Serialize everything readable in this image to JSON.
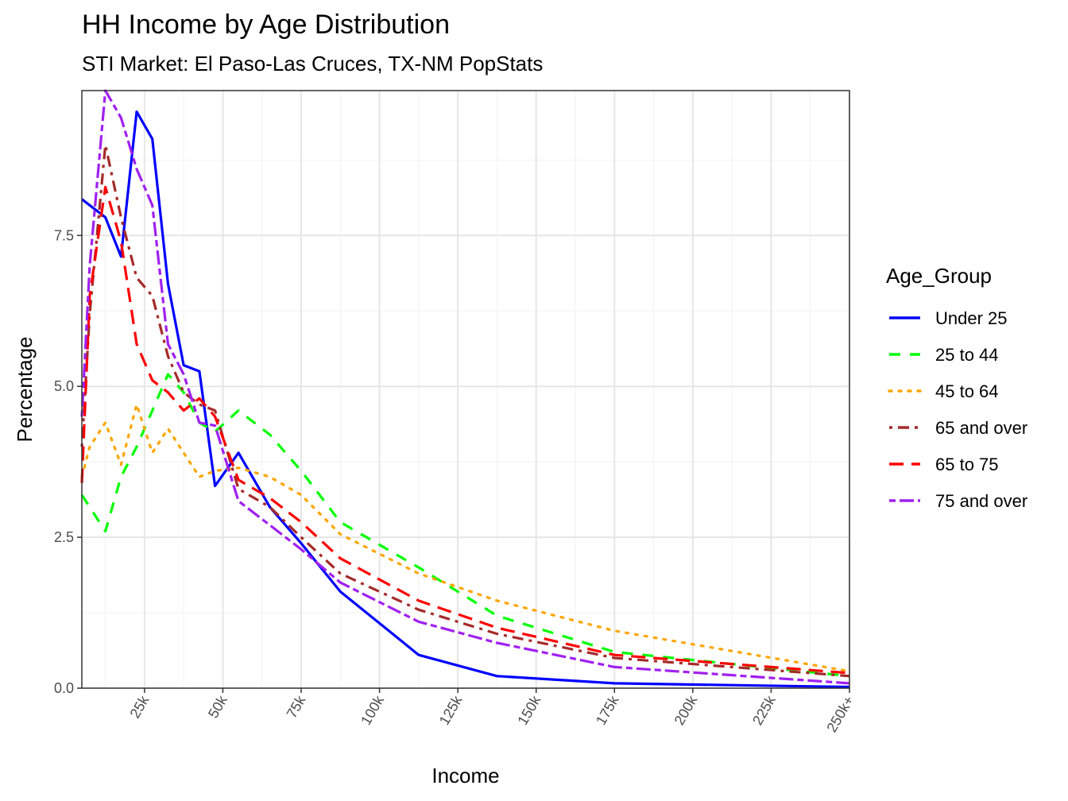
{
  "chart_data": {
    "type": "line",
    "title": "HH Income by Age Distribution",
    "subtitle": "STI Market: El Paso-Las Cruces, TX-NM PopStats",
    "xlabel": "Income",
    "ylabel": "Percentage",
    "x": [
      5,
      7.5,
      12.5,
      17.5,
      22.5,
      27.5,
      32.5,
      37.5,
      42.5,
      47.5,
      55,
      65,
      75,
      87.5,
      112.5,
      137.5,
      175,
      250
    ],
    "xlim": [
      5,
      250
    ],
    "ylim": [
      0,
      9.9
    ],
    "x_ticks": [
      25,
      50,
      75,
      100,
      125,
      150,
      175,
      200,
      225,
      250
    ],
    "x_tick_labels": [
      "25k",
      "50k",
      "75k",
      "100k",
      "125k",
      "150k",
      "175k",
      "200k",
      "225k",
      "250k+"
    ],
    "y_ticks": [
      0,
      2.5,
      5,
      7.5
    ],
    "y_tick_labels": [
      "0.0",
      "2.5",
      "5.0",
      "7.5"
    ],
    "grid": true,
    "legend_title": "Age_Group",
    "legend_position": "right",
    "series": [
      {
        "name": "Under 25",
        "color": "#0000ff",
        "dash": "solid",
        "values": [
          8.1,
          8.0,
          7.8,
          7.15,
          9.55,
          9.1,
          6.7,
          5.35,
          5.25,
          3.35,
          3.9,
          3.0,
          2.4,
          1.6,
          0.55,
          0.2,
          0.08,
          0.02
        ]
      },
      {
        "name": "25 to 44",
        "color": "#00ff00",
        "dash": "dash",
        "values": [
          3.2,
          3.0,
          2.6,
          3.5,
          4.0,
          4.6,
          5.2,
          4.9,
          4.4,
          4.25,
          4.6,
          4.2,
          3.6,
          2.75,
          2.0,
          1.2,
          0.6,
          0.2
        ]
      },
      {
        "name": "45 to 64",
        "color": "#ffa500",
        "dash": "dot",
        "values": [
          3.5,
          4.0,
          4.4,
          3.7,
          4.7,
          3.9,
          4.3,
          3.9,
          3.5,
          3.6,
          3.65,
          3.5,
          3.2,
          2.55,
          1.9,
          1.45,
          0.95,
          0.28
        ]
      },
      {
        "name": "65 and over",
        "color": "#a52a2a",
        "dash": "dashdot",
        "values": [
          4.0,
          6.2,
          9.0,
          7.8,
          6.8,
          6.5,
          5.5,
          4.9,
          4.7,
          4.6,
          3.3,
          3.0,
          2.5,
          1.9,
          1.3,
          0.9,
          0.5,
          0.2
        ]
      },
      {
        "name": "65 to 75",
        "color": "#ff0000",
        "dash": "longdash",
        "values": [
          3.4,
          6.5,
          8.3,
          7.4,
          5.7,
          5.1,
          4.9,
          4.6,
          4.8,
          4.5,
          3.45,
          3.15,
          2.75,
          2.15,
          1.45,
          1.0,
          0.55,
          0.25
        ]
      },
      {
        "name": "75 and over",
        "color": "#a020f0",
        "dash": "twodash",
        "values": [
          4.5,
          7.0,
          9.9,
          9.45,
          8.6,
          8.0,
          5.7,
          5.2,
          4.4,
          4.35,
          3.1,
          2.7,
          2.3,
          1.75,
          1.1,
          0.75,
          0.35,
          0.08
        ]
      }
    ]
  }
}
